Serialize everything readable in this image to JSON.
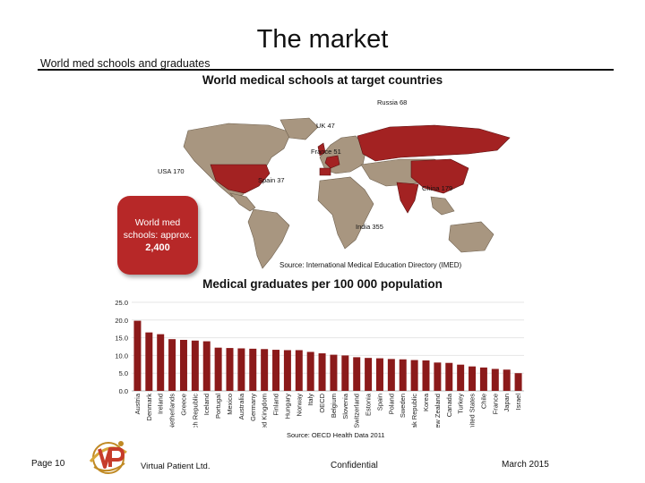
{
  "slide": {
    "title": "The market",
    "section_label": "World med schools and graduates",
    "page_label": "Page 10",
    "company": "Virtual Patient Ltd.",
    "confidential": "Confidential",
    "date": "March 2015"
  },
  "map": {
    "title": "World medical schools at target countries",
    "callout_text": "World med schools: approx.",
    "callout_count": "2,400",
    "labels": [
      {
        "id": "russia",
        "text": "Russia 68"
      },
      {
        "id": "uk",
        "text": "UK 47"
      },
      {
        "id": "france",
        "text": "France 51"
      },
      {
        "id": "usa",
        "text": "USA 170"
      },
      {
        "id": "spain",
        "text": "Spain 37"
      },
      {
        "id": "china",
        "text": "China 179"
      },
      {
        "id": "india",
        "text": "India 355"
      }
    ],
    "source": "Source: International Medical Education Directory (IMED)",
    "colors": {
      "highlight": "#a32222",
      "land": "#a89680",
      "callout": "#b72828"
    }
  },
  "chart_data": {
    "type": "bar",
    "title": "Medical graduates per 100 000 population",
    "ylim": [
      0,
      25
    ],
    "yticks": [
      "25.0",
      "20.0",
      "15.0",
      "10.0",
      "5.0",
      "0.0"
    ],
    "categories": [
      "Austria",
      "Denmark",
      "Ireland",
      "Netherlands",
      "Greece",
      "Czech Republic",
      "Iceland",
      "Portugal",
      "Mexico",
      "Australia",
      "Germany",
      "United Kingdom",
      "Finland",
      "Hungary",
      "Norway",
      "Italy",
      "OECD",
      "Belgium",
      "Slovenia",
      "Switzerland",
      "Estonia",
      "Spain",
      "Poland",
      "Sweden",
      "Slovak Republic",
      "Korea",
      "New Zealand",
      "Canada",
      "Turkey",
      "United States",
      "Chile",
      "France",
      "Japan",
      "Israel"
    ],
    "values": [
      19.8,
      16.5,
      16.0,
      14.6,
      14.4,
      14.2,
      14.0,
      12.2,
      12.1,
      12.0,
      11.9,
      11.8,
      11.6,
      11.5,
      11.5,
      11.0,
      10.6,
      10.2,
      10.0,
      9.5,
      9.3,
      9.2,
      9.0,
      8.9,
      8.7,
      8.6,
      8.0,
      7.9,
      7.4,
      6.9,
      6.6,
      6.2,
      6.0,
      5.0
    ],
    "color": "#8b1a1a",
    "source": "Source: OECD Health Data 2011",
    "grid": true
  }
}
